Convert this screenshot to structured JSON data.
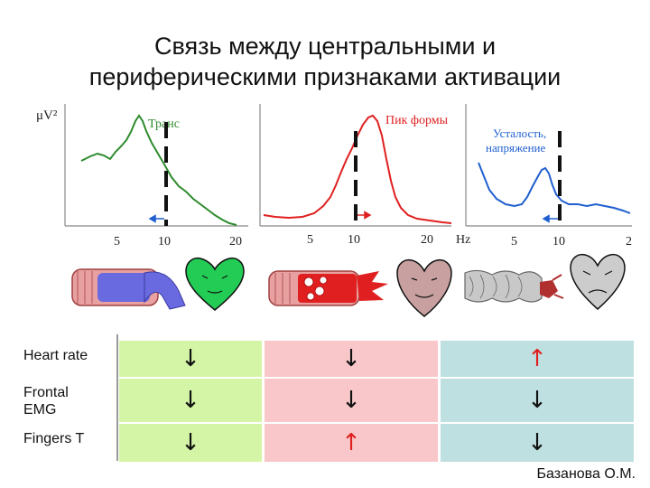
{
  "title": {
    "line1": "Связь между центральными и",
    "line2": "периферическими  признаками активации"
  },
  "plots": {
    "y_unit": "μV²",
    "x_unit": "Hz",
    "panel1": {
      "label": "Транс",
      "ticks": [
        "5",
        "10",
        "20"
      ],
      "color": "#2e8b2e"
    },
    "panel2": {
      "label": "Пик формы",
      "ticks": [
        "5",
        "10",
        "20"
      ],
      "color": "#e02020"
    },
    "panel3": {
      "label_line1": "Усталость,",
      "label_line2": "напряжение",
      "ticks": [
        "5",
        "10",
        "2"
      ],
      "color": "#1f5fcf"
    }
  },
  "table": {
    "rows": [
      {
        "label": "Heart rate",
        "arrows": [
          "↓",
          "↓",
          "↑"
        ]
      },
      {
        "label_line1": "Frontal",
        "label_line2": "EMG",
        "arrows": [
          "↓",
          "↓",
          "↓"
        ]
      },
      {
        "label": "Fingers T",
        "arrows": [
          "↓",
          "↑",
          "↓"
        ]
      }
    ],
    "column_colors": [
      "#d4f5a6",
      "#f9c7c9",
      "#bfe0e0"
    ],
    "arrow_colors": {
      "down": "#111111",
      "up": "#e02020"
    }
  },
  "author": "Базанова О.М."
}
